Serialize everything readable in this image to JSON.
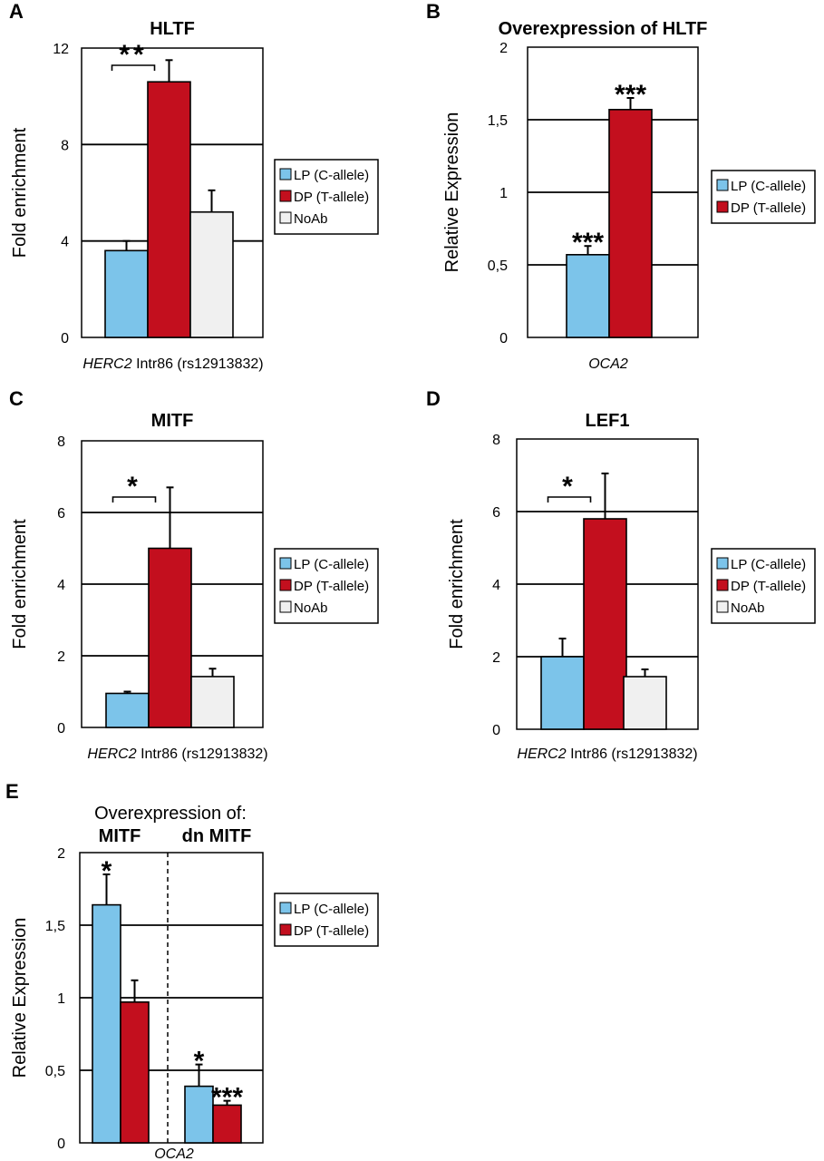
{
  "colors": {
    "lp": "#7cc4ea",
    "dp": "#c30f1e",
    "noab": "#f0f0f0",
    "grid": "#000000"
  },
  "chart_data": [
    {
      "panel": "A",
      "type": "bar",
      "title": "HLTF",
      "xlabel": "HERC2 Intr86 (rs12913832)",
      "xlabel_italic": "HERC2",
      "xlabel_rest": " Intr86 (rs12913832)",
      "ylabel": "Fold enrichment",
      "ylim": [
        0,
        12
      ],
      "yticks": [
        0,
        4,
        8,
        12
      ],
      "ytick_labels": [
        "0",
        "4",
        "8",
        "12"
      ],
      "series": [
        {
          "name": "LP (C-allele)",
          "color": "lp",
          "value": 3.6,
          "err": 0.4
        },
        {
          "name": "DP (T-allele)",
          "color": "dp",
          "value": 10.6,
          "err": 0.9
        },
        {
          "name": "NoAb",
          "color": "noab",
          "value": 5.2,
          "err": 0.9
        }
      ],
      "bracket": {
        "label": "**",
        "from": 0,
        "to": 1
      },
      "legend": "right"
    },
    {
      "panel": "B",
      "type": "bar",
      "title": "Overexpression of HLTF",
      "xlabel": "OCA2",
      "xlabel_italic": "OCA2",
      "xlabel_rest": "",
      "ylabel": "Relative Expression",
      "ylim": [
        0,
        2
      ],
      "yticks": [
        0,
        0.5,
        1,
        1.5,
        2
      ],
      "ytick_labels": [
        "0",
        "0,5",
        "1",
        "1,5",
        "2"
      ],
      "series": [
        {
          "name": "LP (C-allele)",
          "color": "lp",
          "value": 0.57,
          "err": 0.06,
          "star": "***"
        },
        {
          "name": "DP (T-allele)",
          "color": "dp",
          "value": 1.57,
          "err": 0.08,
          "star": "***"
        }
      ],
      "legend": "right"
    },
    {
      "panel": "C",
      "type": "bar",
      "title": "MITF",
      "xlabel": "HERC2 Intr86 (rs12913832)",
      "xlabel_italic": "HERC2",
      "xlabel_rest": " Intr86 (rs12913832)",
      "ylabel": "Fold enrichment",
      "ylim": [
        0,
        8
      ],
      "yticks": [
        0,
        2,
        4,
        6,
        8
      ],
      "ytick_labels": [
        "0",
        "2",
        "4",
        "6",
        "8"
      ],
      "series": [
        {
          "name": "LP (C-allele)",
          "color": "lp",
          "value": 0.95,
          "err": 0.05
        },
        {
          "name": "DP (T-allele)",
          "color": "dp",
          "value": 5.0,
          "err": 1.7
        },
        {
          "name": "NoAb",
          "color": "noab",
          "value": 1.42,
          "err": 0.22
        }
      ],
      "bracket": {
        "label": "*",
        "from": 0,
        "to": 1
      },
      "legend": "right"
    },
    {
      "panel": "D",
      "type": "bar",
      "title": "LEF1",
      "xlabel": "HERC2 Intr86 (rs12913832)",
      "xlabel_italic": "HERC2",
      "xlabel_rest": " Intr86 (rs12913832)",
      "ylabel": "Fold enrichment",
      "ylim": [
        0,
        8
      ],
      "yticks": [
        0,
        2,
        4,
        6,
        8
      ],
      "ytick_labels": [
        "0",
        "2",
        "4",
        "6",
        "8"
      ],
      "series": [
        {
          "name": "LP (C-allele)",
          "color": "lp",
          "value": 2.0,
          "err": 0.5
        },
        {
          "name": "DP (T-allele)",
          "color": "dp",
          "value": 5.8,
          "err": 1.25
        },
        {
          "name": "NoAb",
          "color": "noab",
          "value": 1.45,
          "err": 0.2
        }
      ],
      "bracket": {
        "label": "*",
        "from": 0,
        "to": 1
      },
      "legend": "right"
    },
    {
      "panel": "E",
      "type": "bar",
      "subtitle": "Overexpression of:",
      "group_labels": [
        "MITF",
        "dn MITF"
      ],
      "xlabel": "OCA2",
      "xlabel_italic": "OCA2",
      "xlabel_rest": "",
      "ylabel": "Relative Expression",
      "ylim": [
        0,
        2
      ],
      "yticks": [
        0,
        0.5,
        1,
        1.5,
        2
      ],
      "ytick_labels": [
        "0",
        "0,5",
        "1",
        "1,5",
        "2"
      ],
      "groups": [
        [
          {
            "name": "LP (C-allele)",
            "color": "lp",
            "value": 1.64,
            "err": 0.21,
            "star": "*"
          },
          {
            "name": "DP (T-allele)",
            "color": "dp",
            "value": 0.97,
            "err": 0.15
          }
        ],
        [
          {
            "name": "LP (C-allele)",
            "color": "lp",
            "value": 0.39,
            "err": 0.15,
            "star": "*"
          },
          {
            "name": "DP (T-allele)",
            "color": "dp",
            "value": 0.26,
            "err": 0.03,
            "star": "***"
          }
        ]
      ],
      "legend": "right"
    }
  ]
}
